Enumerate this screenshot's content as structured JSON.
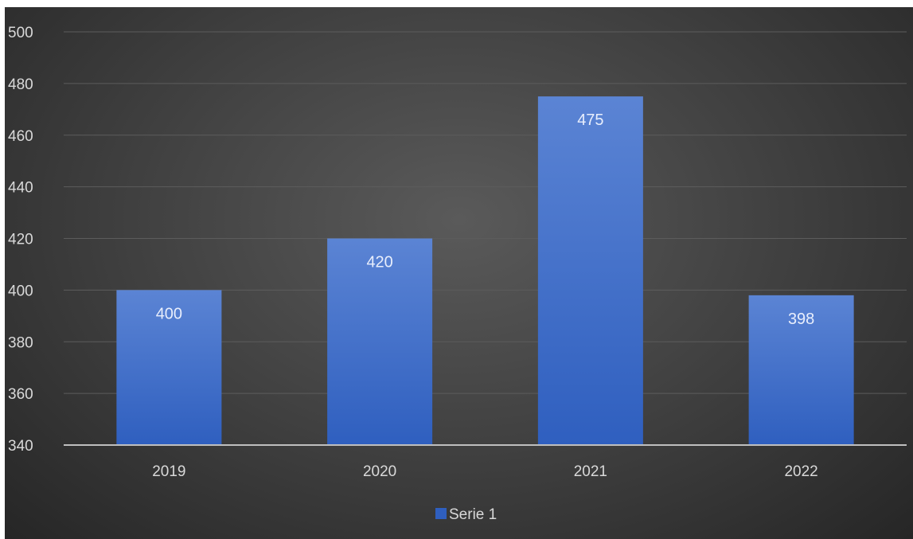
{
  "chart_data": {
    "type": "bar",
    "title": "",
    "xlabel": "",
    "ylabel": "",
    "categories": [
      "2019",
      "2020",
      "2021",
      "2022"
    ],
    "series": [
      {
        "name": "Serie 1",
        "values": [
          400,
          420,
          475,
          398
        ]
      }
    ],
    "ylim": [
      340,
      500
    ],
    "yticks": [
      340,
      360,
      380,
      400,
      420,
      440,
      460,
      480,
      500
    ],
    "grid": true,
    "legend_position": "bottom",
    "data_labels": [
      "400",
      "420",
      "475",
      "398"
    ],
    "colors": {
      "bar_top": "#5b84d4",
      "bar_bottom": "#2f5fbf",
      "background": "#3e3e3e",
      "gridline": "#5c5c5c",
      "axis_line": "#bfbfbf",
      "text": "#d9d9d9"
    }
  }
}
